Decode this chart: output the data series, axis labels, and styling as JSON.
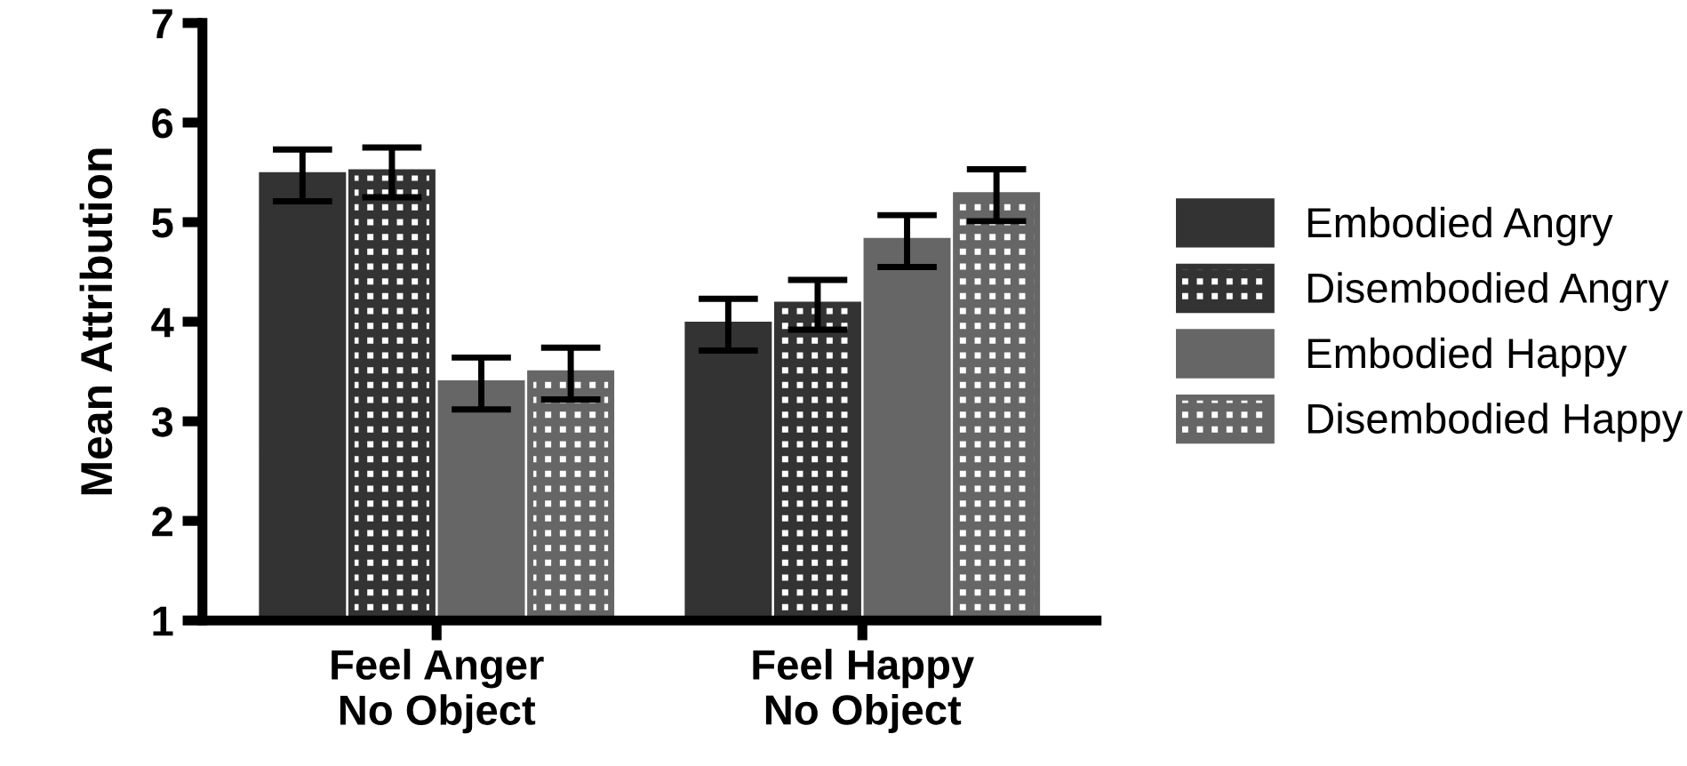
{
  "chart_data": {
    "type": "bar",
    "ylabel": "Mean Attribution",
    "categories": [
      "Feel Anger\nNo Object",
      "Feel Happy\nNo Object"
    ],
    "series": [
      {
        "name": "Embodied Angry",
        "color": "#333333",
        "values": [
          5.47,
          3.97
        ],
        "errors": [
          0.26,
          0.26
        ]
      },
      {
        "name": "Disembodied Angry",
        "color": "#333333",
        "values": [
          5.5,
          4.17
        ],
        "errors": [
          0.25,
          0.25
        ]
      },
      {
        "name": "Embodied Happy",
        "color": "#666666",
        "values": [
          3.38,
          4.81
        ],
        "errors": [
          0.26,
          0.26
        ]
      },
      {
        "name": "Disembodied Happy",
        "color": "#666666",
        "values": [
          3.48,
          5.27
        ],
        "errors": [
          0.26,
          0.26
        ]
      }
    ],
    "ylim": [
      1,
      7
    ],
    "yticks": [
      1,
      2,
      3,
      4,
      5,
      6,
      7
    ],
    "grid": false,
    "legend": "right"
  }
}
